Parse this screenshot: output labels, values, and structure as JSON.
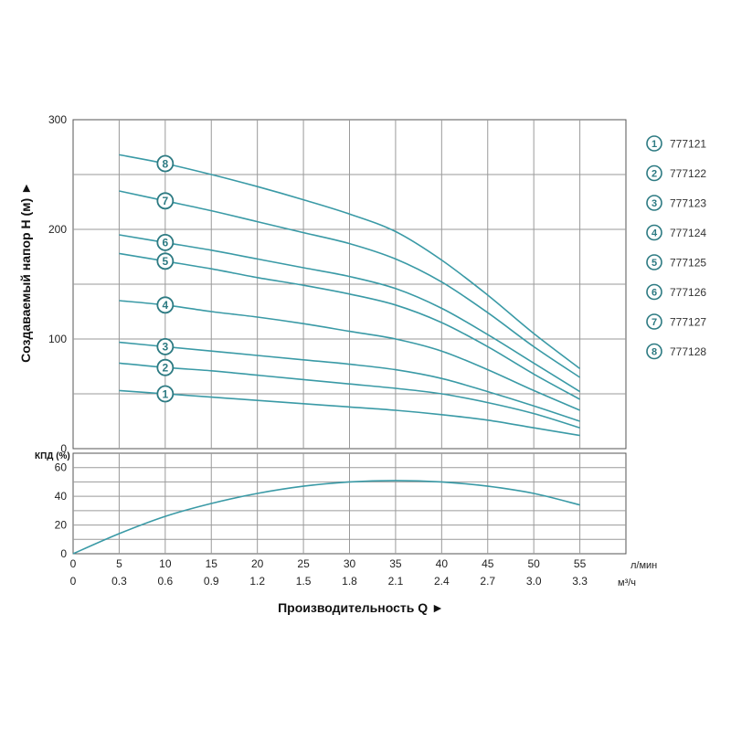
{
  "chart_data": [
    {
      "type": "line",
      "ylabel": "Создаваемый напор H (м) ►",
      "ylim": [
        0,
        300
      ],
      "yticks": [
        "0",
        "100",
        "200",
        "300"
      ],
      "x": [
        5,
        10,
        15,
        20,
        25,
        30,
        35,
        40,
        45,
        50,
        55
      ],
      "grid": true,
      "legend_position": "right",
      "line_color": "#3a9aa6",
      "series": [
        {
          "name": "777121",
          "marker": "1",
          "values": [
            53,
            50,
            47,
            44,
            41,
            38,
            35,
            31,
            26,
            19,
            12
          ]
        },
        {
          "name": "777122",
          "marker": "2",
          "values": [
            78,
            74,
            71,
            67,
            63,
            59,
            55,
            50,
            42,
            32,
            19
          ]
        },
        {
          "name": "777123",
          "marker": "3",
          "values": [
            97,
            93,
            89,
            85,
            81,
            77,
            72,
            64,
            52,
            39,
            25
          ]
        },
        {
          "name": "777124",
          "marker": "4",
          "values": [
            135,
            131,
            125,
            120,
            114,
            107,
            100,
            89,
            72,
            53,
            35
          ]
        },
        {
          "name": "777125",
          "marker": "5",
          "values": [
            178,
            171,
            164,
            156,
            149,
            141,
            131,
            115,
            93,
            68,
            45
          ]
        },
        {
          "name": "777126",
          "marker": "6",
          "values": [
            195,
            188,
            181,
            173,
            165,
            157,
            146,
            128,
            104,
            78,
            52
          ]
        },
        {
          "name": "777127",
          "marker": "7",
          "values": [
            235,
            226,
            217,
            207,
            197,
            187,
            173,
            152,
            124,
            93,
            65
          ]
        },
        {
          "name": "777128",
          "marker": "8",
          "values": [
            268,
            260,
            250,
            239,
            227,
            214,
            198,
            172,
            140,
            105,
            73
          ]
        }
      ]
    },
    {
      "type": "line",
      "ylabel": "КПД (%)",
      "ylim": [
        0,
        70
      ],
      "yticks": [
        "0",
        "20",
        "40",
        "60"
      ],
      "xlabel": "Производительность Q ►",
      "x": [
        0,
        5,
        10,
        15,
        20,
        25,
        30,
        35,
        40,
        45,
        50,
        55
      ],
      "xlim": [
        0,
        60
      ],
      "xticks_primary": [
        "0",
        "5",
        "10",
        "15",
        "20",
        "25",
        "30",
        "35",
        "40",
        "45",
        "50",
        "55"
      ],
      "xunit_primary": "л/мин",
      "xticks_secondary": [
        "0",
        "0.3",
        "0.6",
        "0.9",
        "1.2",
        "1.5",
        "1.8",
        "2.1",
        "2.4",
        "2.7",
        "3.0",
        "3.3"
      ],
      "xunit_secondary": "м³/ч",
      "grid": true,
      "line_color": "#3a9aa6",
      "series": [
        {
          "values": [
            0,
            14,
            26,
            35,
            42,
            47,
            50,
            51,
            50,
            47,
            42,
            34
          ]
        }
      ]
    }
  ]
}
